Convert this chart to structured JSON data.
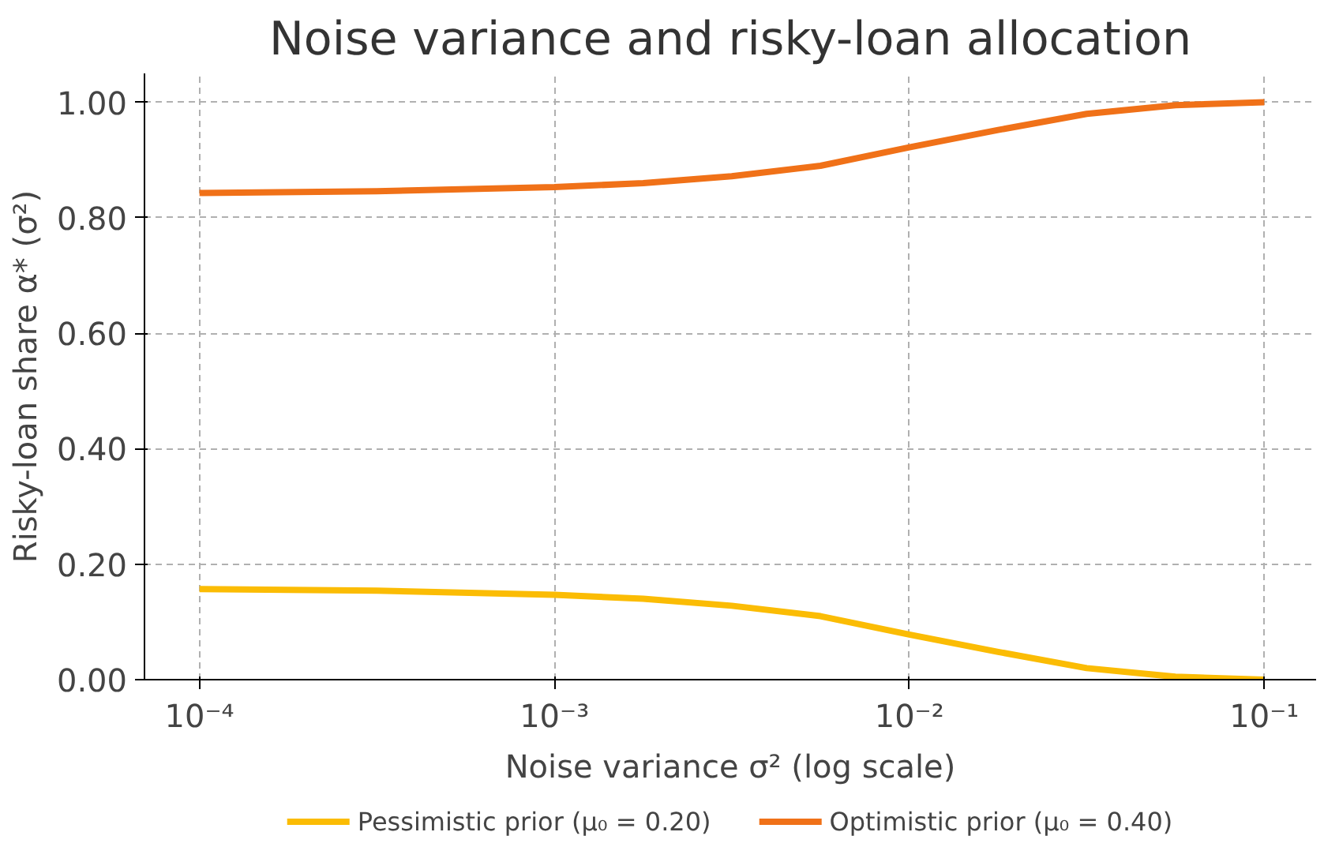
{
  "chart_data": {
    "type": "line",
    "title": "Noise variance and risky-loan allocation",
    "xlabel": "Noise variance σ² (log scale)",
    "ylabel": "Risky-loan share α* (σ²)",
    "log": "x",
    "grid": true,
    "legend": "bottom",
    "line_style": "solid",
    "marker": "none",
    "x": [
      0.0001,
      0.000316,
      0.001,
      0.00178,
      0.00316,
      0.00562,
      0.01,
      0.0178,
      0.0316,
      0.0562,
      0.1
    ],
    "xlim": [
      7e-05,
      0.14
    ],
    "xticks": [
      {
        "value": 0.0001,
        "label": "10⁻⁴"
      },
      {
        "value": 0.001,
        "label": "10⁻³"
      },
      {
        "value": 0.01,
        "label": "10⁻²"
      },
      {
        "value": 0.1,
        "label": "10⁻¹"
      }
    ],
    "ylim": [
      0,
      1.05
    ],
    "yticks": [
      {
        "value": 0,
        "label": "0.00"
      },
      {
        "value": 0.2,
        "label": "0.20"
      },
      {
        "value": 0.4,
        "label": "0.40"
      },
      {
        "value": 0.6,
        "label": "0.60"
      },
      {
        "value": 0.8,
        "label": "0.80"
      },
      {
        "value": 1,
        "label": "1.00"
      }
    ],
    "series": [
      {
        "name": "Pessimistic prior (μ₀ = 0.20)",
        "color": "#fbbc04",
        "values": [
          0.157,
          0.154,
          0.147,
          0.14,
          0.128,
          0.11,
          0.078,
          0.048,
          0.02,
          0.005,
          0.0
        ]
      },
      {
        "name": "Optimistic prior (μ₀ = 0.40)",
        "color": "#f07118",
        "values": [
          0.843,
          0.846,
          0.853,
          0.86,
          0.872,
          0.89,
          0.922,
          0.952,
          0.98,
          0.995,
          1.0
        ]
      }
    ]
  }
}
